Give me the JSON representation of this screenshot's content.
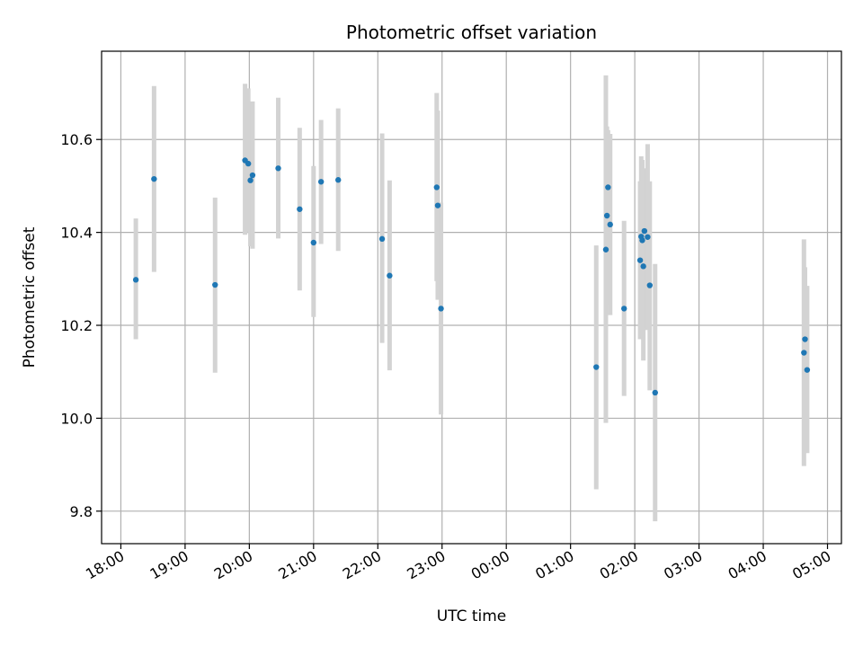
{
  "chart_data": {
    "type": "scatter",
    "title": "Photometric offset variation",
    "xlabel": "UTC time",
    "ylabel": "Photometric offset",
    "grid": true,
    "xlim": [
      "18:00",
      "05:13"
    ],
    "ylim": [
      9.73,
      10.79
    ],
    "x_ticks": [
      "18:00",
      "19:00",
      "20:00",
      "21:00",
      "22:00",
      "23:00",
      "00:00",
      "01:00",
      "02:00",
      "03:00",
      "04:00",
      "05:00"
    ],
    "y_ticks": [
      "9.8",
      "10.0",
      "10.2",
      "10.4",
      "10.6"
    ],
    "colors": {
      "points": "#1f77b4",
      "errorbars": "#d3d3d3",
      "grid": "#b0b0b0"
    },
    "points": [
      {
        "x": "18:14",
        "y": 10.298,
        "yerr_low": 10.17,
        "yerr_high": 10.43
      },
      {
        "x": "18:31",
        "y": 10.515,
        "yerr_low": 10.315,
        "yerr_high": 10.715
      },
      {
        "x": "19:28",
        "y": 10.287,
        "yerr_low": 10.098,
        "yerr_high": 10.475
      },
      {
        "x": "19:56",
        "y": 10.555,
        "yerr_low": 10.395,
        "yerr_high": 10.72
      },
      {
        "x": "19:59",
        "y": 10.548,
        "yerr_low": 10.4,
        "yerr_high": 10.71
      },
      {
        "x": "20:01",
        "y": 10.512,
        "yerr_low": 10.37,
        "yerr_high": 10.68
      },
      {
        "x": "20:03",
        "y": 10.523,
        "yerr_low": 10.365,
        "yerr_high": 10.682
      },
      {
        "x": "20:27",
        "y": 10.538,
        "yerr_low": 10.387,
        "yerr_high": 10.69
      },
      {
        "x": "20:47",
        "y": 10.45,
        "yerr_low": 10.275,
        "yerr_high": 10.625
      },
      {
        "x": "21:00",
        "y": 10.378,
        "yerr_low": 10.218,
        "yerr_high": 10.543
      },
      {
        "x": "21:07",
        "y": 10.509,
        "yerr_low": 10.375,
        "yerr_high": 10.642
      },
      {
        "x": "21:23",
        "y": 10.513,
        "yerr_low": 10.36,
        "yerr_high": 10.667
      },
      {
        "x": "22:04",
        "y": 10.386,
        "yerr_low": 10.162,
        "yerr_high": 10.613
      },
      {
        "x": "22:11",
        "y": 10.307,
        "yerr_low": 10.103,
        "yerr_high": 10.512
      },
      {
        "x": "22:55",
        "y": 10.497,
        "yerr_low": 10.295,
        "yerr_high": 10.7
      },
      {
        "x": "22:56",
        "y": 10.458,
        "yerr_low": 10.255,
        "yerr_high": 10.662
      },
      {
        "x": "22:59",
        "y": 10.236,
        "yerr_low": 10.008,
        "yerr_high": 10.464
      },
      {
        "x": "01:24",
        "y": 10.11,
        "yerr_low": 9.847,
        "yerr_high": 10.372
      },
      {
        "x": "01:33",
        "y": 10.363,
        "yerr_low": 9.99,
        "yerr_high": 10.738
      },
      {
        "x": "01:34",
        "y": 10.436,
        "yerr_low": 10.245,
        "yerr_high": 10.628
      },
      {
        "x": "01:35",
        "y": 10.497,
        "yerr_low": 10.275,
        "yerr_high": 10.62
      },
      {
        "x": "01:37",
        "y": 10.417,
        "yerr_low": 10.222,
        "yerr_high": 10.612
      },
      {
        "x": "01:50",
        "y": 10.236,
        "yerr_low": 10.048,
        "yerr_high": 10.425
      },
      {
        "x": "02:05",
        "y": 10.34,
        "yerr_low": 10.17,
        "yerr_high": 10.51
      },
      {
        "x": "02:06",
        "y": 10.391,
        "yerr_low": 10.218,
        "yerr_high": 10.564
      },
      {
        "x": "02:07",
        "y": 10.383,
        "yerr_low": 10.21,
        "yerr_high": 10.556
      },
      {
        "x": "02:08",
        "y": 10.327,
        "yerr_low": 10.124,
        "yerr_high": 10.53
      },
      {
        "x": "02:09",
        "y": 10.403,
        "yerr_low": 10.27,
        "yerr_high": 10.538
      },
      {
        "x": "02:12",
        "y": 10.39,
        "yerr_low": 10.19,
        "yerr_high": 10.59
      },
      {
        "x": "02:14",
        "y": 10.286,
        "yerr_low": 10.06,
        "yerr_high": 10.51
      },
      {
        "x": "02:19",
        "y": 10.055,
        "yerr_low": 9.778,
        "yerr_high": 10.332
      },
      {
        "x": "04:38",
        "y": 10.141,
        "yerr_low": 9.897,
        "yerr_high": 10.385
      },
      {
        "x": "04:39",
        "y": 10.17,
        "yerr_low": 10.02,
        "yerr_high": 10.325
      },
      {
        "x": "04:41",
        "y": 10.104,
        "yerr_low": 9.925,
        "yerr_high": 10.285
      }
    ]
  }
}
